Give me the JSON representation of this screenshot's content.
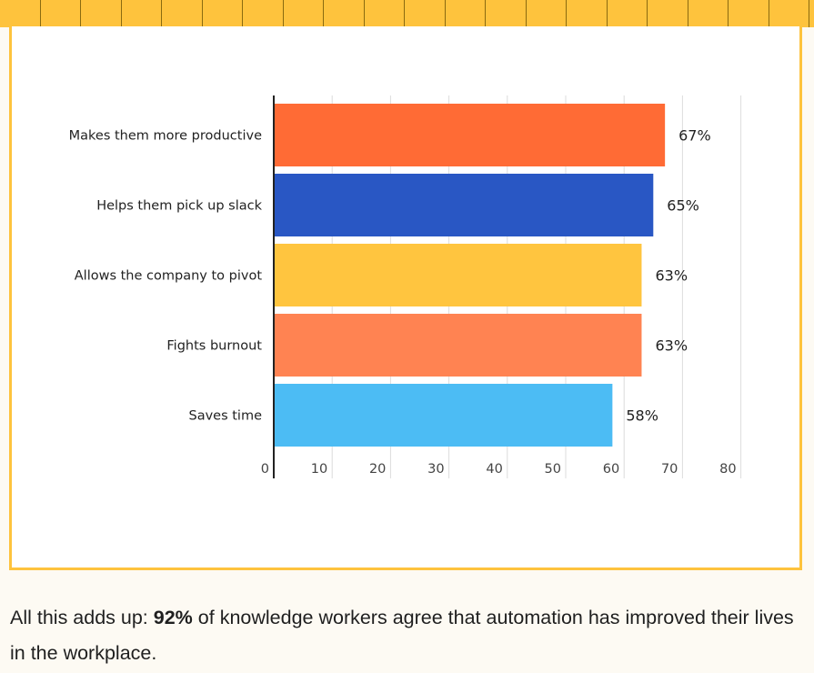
{
  "caption": {
    "before": "All this adds up: ",
    "highlight": "92%",
    "after": " of knowledge workers agree that automation has improved their lives in the workplace."
  },
  "chart_data": {
    "type": "bar",
    "orientation": "horizontal",
    "categories": [
      "Makes them more productive",
      "Helps them pick up slack",
      "Allows the company to pivot",
      "Fights burnout",
      "Saves time"
    ],
    "values": [
      67,
      65,
      63,
      63,
      58
    ],
    "value_labels": [
      "67%",
      "65%",
      "63%",
      "63%",
      "58%"
    ],
    "colors": [
      "#ff6b35",
      "#2957c4",
      "#ffc53f",
      "#ff8352",
      "#4cbcf4"
    ],
    "xlim": [
      0,
      80
    ],
    "xticks": [
      "0",
      "10",
      "20",
      "30",
      "40",
      "50",
      "60",
      "70",
      "80"
    ],
    "grid": true,
    "title": "",
    "xlabel": "",
    "ylabel": ""
  }
}
